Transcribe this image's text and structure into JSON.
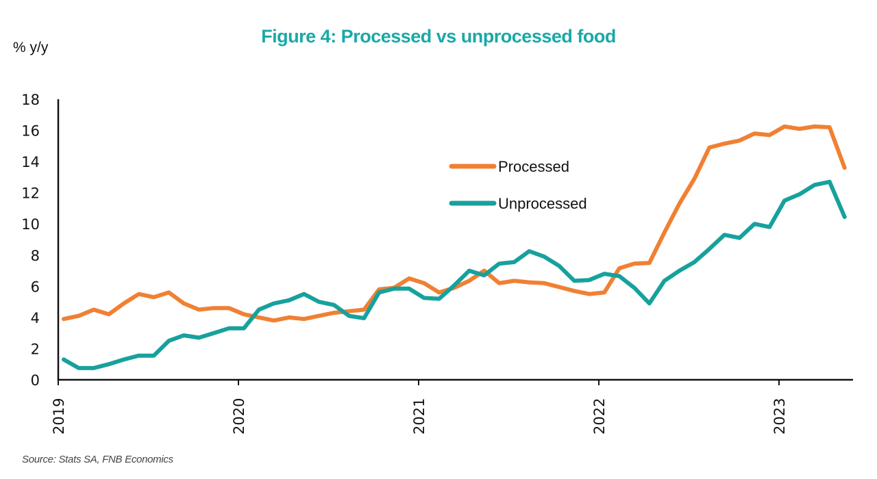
{
  "chart_data": {
    "type": "line",
    "title": "Figure 4: Processed vs unprocessed food",
    "ylabel": "% y/y",
    "xlabel": "",
    "ylim": [
      0,
      18
    ],
    "yticks": [
      0,
      2,
      4,
      6,
      8,
      10,
      12,
      14,
      16,
      18
    ],
    "xticks": [
      "2019",
      "2020",
      "2021",
      "2022",
      "2023"
    ],
    "x_start": "2019-01",
    "x_frequency": "monthly",
    "grid": false,
    "legend_position": "center-right",
    "series": [
      {
        "name": "Processed",
        "color": "#f08033",
        "values": [
          3.9,
          4.1,
          4.5,
          4.2,
          4.9,
          5.5,
          5.3,
          5.6,
          4.9,
          4.5,
          4.6,
          4.6,
          4.2,
          4.0,
          3.8,
          4.0,
          3.9,
          4.1,
          4.3,
          4.4,
          4.5,
          5.8,
          5.9,
          6.5,
          6.2,
          5.6,
          5.9,
          6.35,
          7.0,
          6.2,
          6.35,
          6.25,
          6.2,
          5.95,
          5.7,
          5.5,
          5.6,
          7.15,
          7.45,
          7.5,
          9.45,
          11.3,
          12.9,
          14.9,
          15.15,
          15.35,
          15.8,
          15.7,
          16.25,
          16.1,
          16.25,
          16.2,
          13.6
        ]
      },
      {
        "name": "Unprocessed",
        "color": "#17a19c",
        "values": [
          1.3,
          0.75,
          0.75,
          1.0,
          1.3,
          1.55,
          1.55,
          2.5,
          2.85,
          2.7,
          3.0,
          3.3,
          3.3,
          4.5,
          4.9,
          5.1,
          5.5,
          5.0,
          4.8,
          4.1,
          3.95,
          5.6,
          5.85,
          5.85,
          5.25,
          5.2,
          6.05,
          7.0,
          6.7,
          7.45,
          7.55,
          8.25,
          7.9,
          7.3,
          6.35,
          6.4,
          6.8,
          6.65,
          5.9,
          4.9,
          6.35,
          7.0,
          7.55,
          8.4,
          9.3,
          9.1,
          10.0,
          9.8,
          11.5,
          11.9,
          12.5,
          12.7,
          10.45
        ]
      }
    ]
  },
  "source": "Source: Stats SA, FNB Economics"
}
